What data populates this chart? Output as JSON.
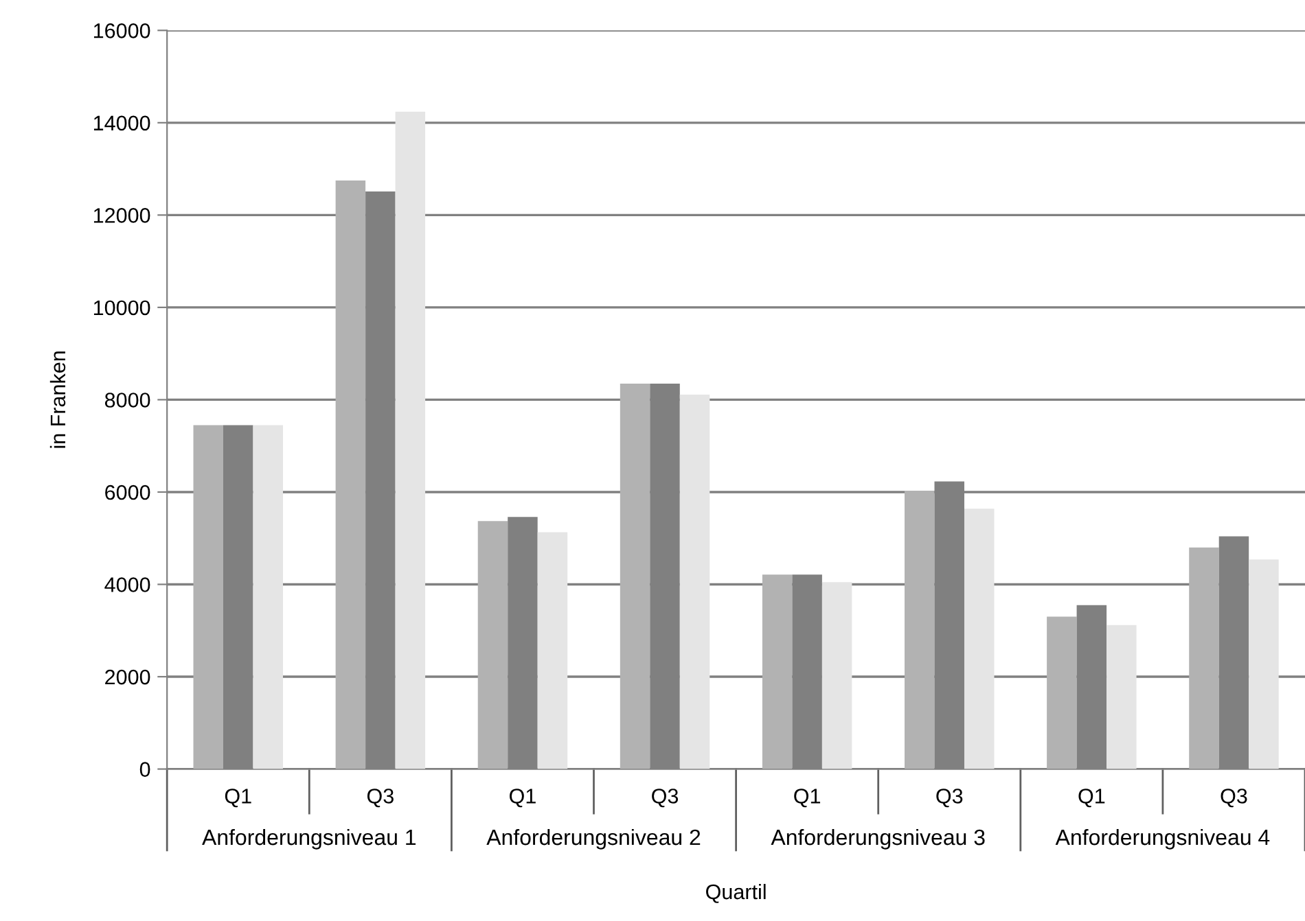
{
  "chart_data": {
    "type": "bar",
    "xlabel": "Quartil",
    "ylabel": "in Franken",
    "categories": [
      "Q1",
      "Q3",
      "Q1",
      "Q3",
      "Q1",
      "Q3",
      "Q1",
      "Q3"
    ],
    "annotations": [
      "Anforderungsniveau 1",
      "Anforderungsniveau 2",
      "Anforderungsniveau 3",
      "Anforderungsniveau 4"
    ],
    "series": [
      {
        "color": "#b2b2b2",
        "values": [
          7450,
          12750,
          5370,
          8350,
          4210,
          6030,
          3300,
          4800
        ]
      },
      {
        "color": "#808080",
        "values": [
          7450,
          12510,
          5460,
          8350,
          4210,
          6230,
          3550,
          5040
        ]
      },
      {
        "color": "#e5e5e5",
        "values": [
          7450,
          14240,
          5130,
          8110,
          4050,
          5640,
          3120,
          4540
        ]
      }
    ],
    "ylim": [
      0,
      16000
    ],
    "yticks": [
      0,
      2000,
      4000,
      6000,
      8000,
      10000,
      12000,
      14000,
      16000
    ],
    "grid": "y",
    "legend": false
  }
}
